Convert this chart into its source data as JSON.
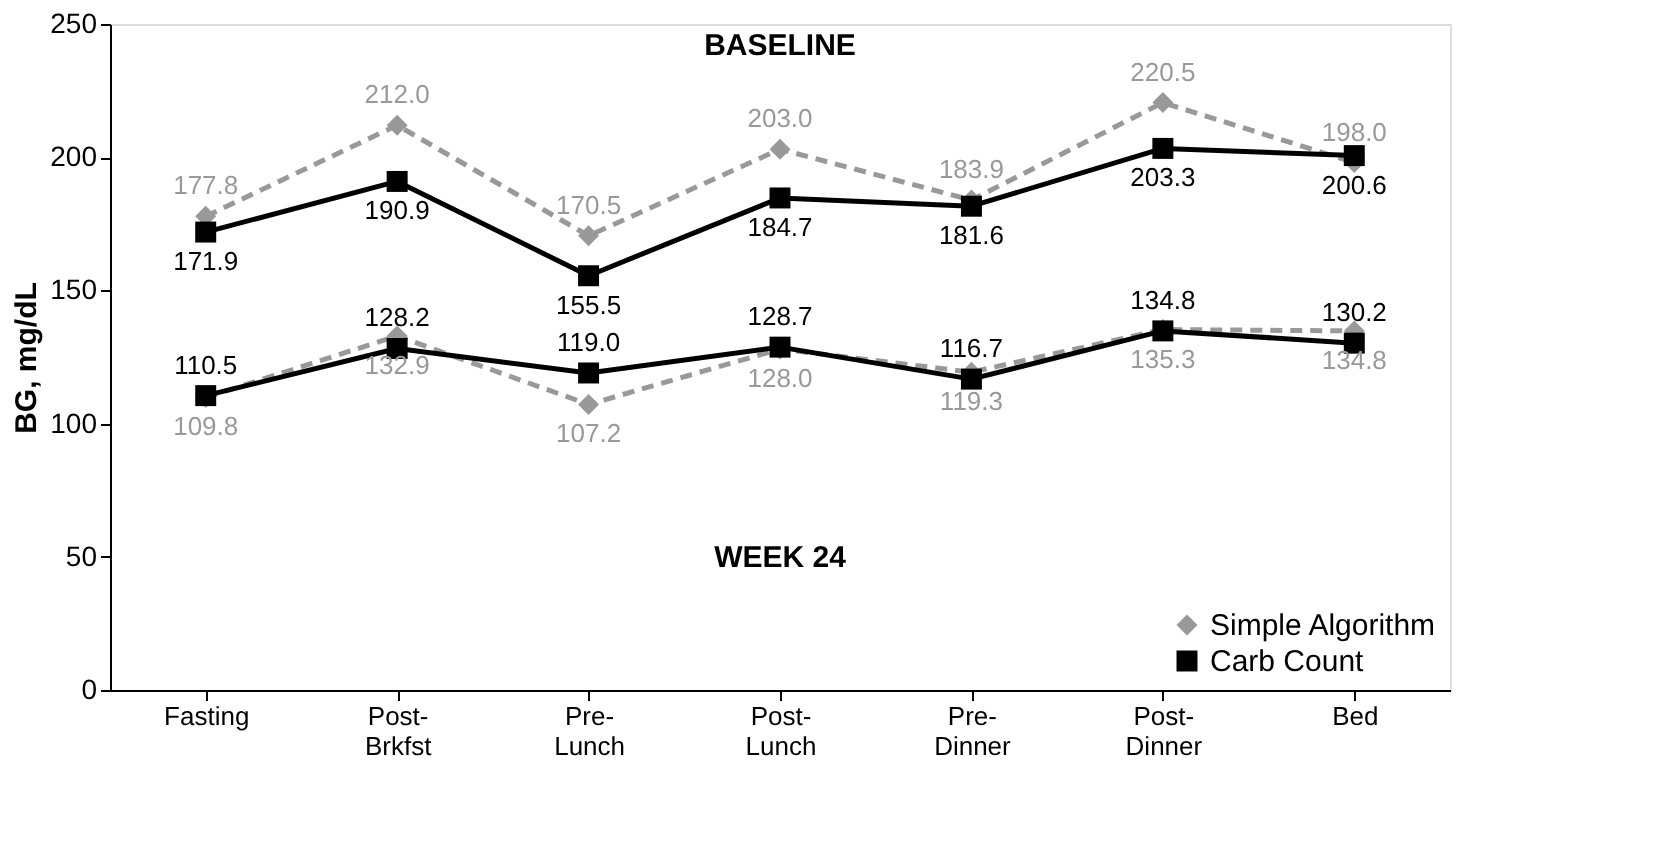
{
  "chart_data": {
    "type": "line",
    "ylabel": "BG, mg/dL",
    "categories": [
      "Fasting",
      "Post-Brkfst",
      "Pre-Lunch",
      "Post-Lunch",
      "Pre-Dinner",
      "Post-Dinner",
      "Bed"
    ],
    "series": [
      {
        "name": "Simple Algorithm",
        "color": "#999999",
        "marker": "diamond",
        "line_style": "dashed",
        "values": [
          177.8,
          212.0,
          170.5,
          203.0,
          183.9,
          220.5,
          198.0
        ],
        "value_labels": [
          "177.8",
          "212.0",
          "170.5",
          "203.0",
          "183.9",
          "220.5",
          "198.0"
        ]
      },
      {
        "name": "Carb Count",
        "color": "#000000",
        "marker": "square",
        "line_style": "solid",
        "values": [
          171.9,
          190.9,
          155.5,
          184.7,
          181.6,
          203.3,
          200.6
        ],
        "value_labels": [
          "171.9",
          "190.9",
          "155.5",
          "184.7",
          "181.6",
          "203.3",
          "200.6"
        ]
      },
      {
        "color": "#999999",
        "marker": "diamond",
        "line_style": "dashed",
        "values": [
          109.8,
          132.9,
          107.2,
          128.0,
          119.3,
          135.3,
          134.8
        ],
        "value_labels": [
          "109.8",
          "132.9",
          "107.2",
          "128.0",
          "119.3",
          "135.3",
          "134.8"
        ]
      },
      {
        "color": "#000000",
        "marker": "square",
        "line_style": "solid",
        "values": [
          110.5,
          128.2,
          119.0,
          128.7,
          116.7,
          134.8,
          130.2
        ],
        "value_labels": [
          "110.5",
          "128.2",
          "119.0",
          "128.7",
          "116.7",
          "134.8",
          "130.2"
        ]
      }
    ],
    "annotations": [
      "BASELINE",
      "WEEK 24"
    ],
    "ylim": [
      0,
      250
    ],
    "yticks": [
      0,
      50,
      100,
      150,
      200,
      250
    ],
    "grid": false,
    "legend": "bottom right"
  }
}
